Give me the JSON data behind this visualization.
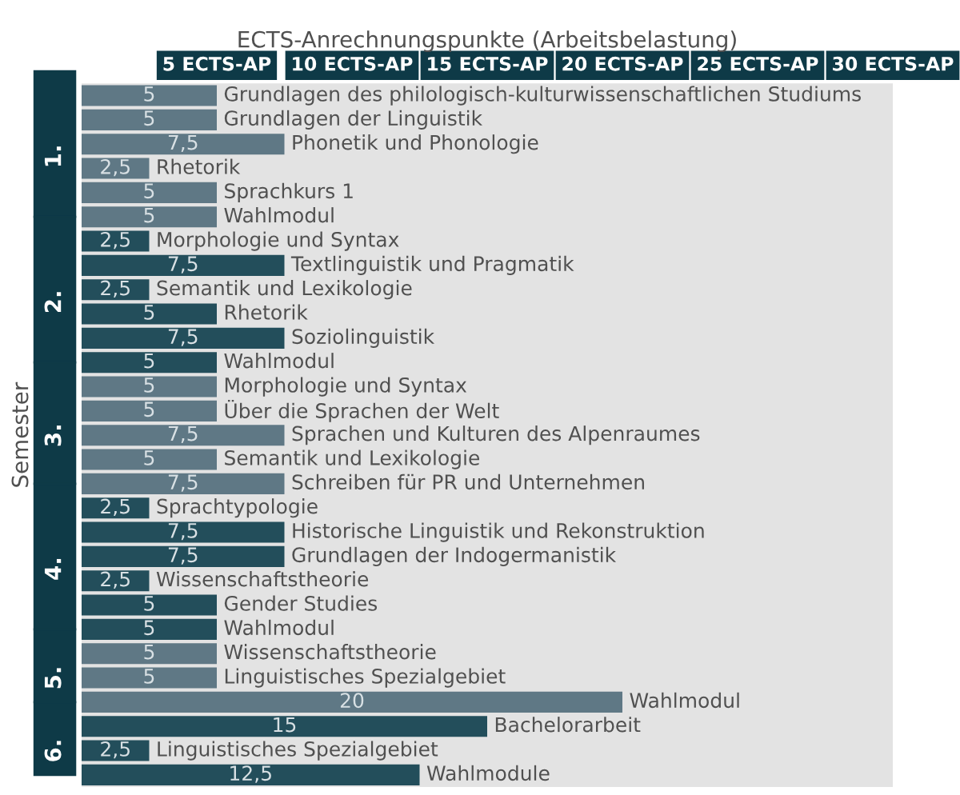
{
  "chart_data": {
    "type": "bar",
    "orientation": "horizontal",
    "xlabel": "ECTS-Anrechnungspunkte (Arbeitsbelastung)",
    "ylabel": "Semester",
    "categories": [
      "Grundlagen des philologisch-kulturwissenschaftlichen Studiums",
      "Grundlagen der Linguistik",
      "Phonetik und Phonologie",
      "Rhetorik",
      "Sprachkurs 1",
      "Wahlmodul",
      "Morphologie und Syntax",
      "Textlinguistik und Pragmatik",
      "Semantik und Lexikologie",
      "Rhetorik",
      "Soziolinguistik",
      "Wahlmodul",
      "Morphologie und Syntax",
      "Über die Sprachen der Welt",
      "Sprachen und Kulturen des Alpenraumes",
      "Semantik und Lexikologie",
      "Schreiben für PR und Unternehmen",
      "Sprachtypologie",
      "Historische Linguistik und Rekonstruktion",
      "Grundlagen der Indogermanistik",
      "Wissenschaftstheorie",
      "Gender Studies",
      "Wahlmodul",
      "Wissenschaftstheorie",
      "Linguistisches Spezialgebiet",
      "Wahlmodul",
      "Bachelorarbeit",
      "Linguistisches Spezialgebiet",
      "Wahlmodule"
    ],
    "series": [
      {
        "name": "1.",
        "color": "#5f7885",
        "values": [
          5,
          5,
          7.5,
          2.5,
          5,
          5,
          null,
          null,
          null,
          null,
          null,
          null,
          null,
          null,
          null,
          null,
          null,
          null,
          null,
          null,
          null,
          null,
          null,
          null,
          null,
          null,
          null,
          null,
          null
        ],
        "value_labels": [
          "5",
          "5",
          "7,5",
          "2,5",
          "5",
          "5",
          null,
          null,
          null,
          null,
          null,
          null,
          null,
          null,
          null,
          null,
          null,
          null,
          null,
          null,
          null,
          null,
          null,
          null,
          null,
          null,
          null,
          null,
          null
        ]
      },
      {
        "name": "2.",
        "color": "#234e5b",
        "values": [
          null,
          null,
          null,
          null,
          null,
          null,
          2.5,
          7.5,
          2.5,
          5,
          7.5,
          5,
          null,
          null,
          null,
          null,
          null,
          null,
          null,
          null,
          null,
          null,
          null,
          null,
          null,
          null,
          null,
          null,
          null
        ],
        "value_labels": [
          null,
          null,
          null,
          null,
          null,
          null,
          "2,5",
          "7,5",
          "2,5",
          "5",
          "7,5",
          "5",
          null,
          null,
          null,
          null,
          null,
          null,
          null,
          null,
          null,
          null,
          null,
          null,
          null,
          null,
          null,
          null,
          null
        ]
      },
      {
        "name": "3.",
        "color": "#5f7885",
        "values": [
          null,
          null,
          null,
          null,
          null,
          null,
          null,
          null,
          null,
          null,
          null,
          null,
          5,
          5,
          7.5,
          5,
          7.5,
          null,
          null,
          null,
          null,
          null,
          null,
          null,
          null,
          null,
          null,
          null,
          null
        ],
        "value_labels": [
          null,
          null,
          null,
          null,
          null,
          null,
          null,
          null,
          null,
          null,
          null,
          null,
          "5",
          "5",
          "7,5",
          "5",
          "7,5",
          null,
          null,
          null,
          null,
          null,
          null,
          null,
          null,
          null,
          null,
          null,
          null
        ]
      },
      {
        "name": "4.",
        "color": "#234e5b",
        "values": [
          null,
          null,
          null,
          null,
          null,
          null,
          null,
          null,
          null,
          null,
          null,
          null,
          null,
          null,
          null,
          null,
          null,
          2.5,
          7.5,
          7.5,
          2.5,
          5,
          5,
          null,
          null,
          null,
          null,
          null,
          null
        ],
        "value_labels": [
          null,
          null,
          null,
          null,
          null,
          null,
          null,
          null,
          null,
          null,
          null,
          null,
          null,
          null,
          null,
          null,
          null,
          "2,5",
          "7,5",
          "7,5",
          "2,5",
          "5",
          "5",
          null,
          null,
          null,
          null,
          null,
          null
        ]
      },
      {
        "name": "5.",
        "color": "#5f7885",
        "values": [
          null,
          null,
          null,
          null,
          null,
          null,
          null,
          null,
          null,
          null,
          null,
          null,
          null,
          null,
          null,
          null,
          null,
          null,
          null,
          null,
          null,
          null,
          null,
          5,
          5,
          20,
          null,
          null,
          null
        ],
        "value_labels": [
          null,
          null,
          null,
          null,
          null,
          null,
          null,
          null,
          null,
          null,
          null,
          null,
          null,
          null,
          null,
          null,
          null,
          null,
          null,
          null,
          null,
          null,
          null,
          "5",
          "5",
          "20",
          null,
          null,
          null
        ]
      },
      {
        "name": "6.",
        "color": "#234e5b",
        "values": [
          null,
          null,
          null,
          null,
          null,
          null,
          null,
          null,
          null,
          null,
          null,
          null,
          null,
          null,
          null,
          null,
          null,
          null,
          null,
          null,
          null,
          null,
          null,
          null,
          null,
          null,
          15,
          2.5,
          12.5
        ],
        "value_labels": [
          null,
          null,
          null,
          null,
          null,
          null,
          null,
          null,
          null,
          null,
          null,
          null,
          null,
          null,
          null,
          null,
          null,
          null,
          null,
          null,
          null,
          null,
          null,
          null,
          null,
          null,
          "15",
          "2,5",
          "12,5"
        ]
      }
    ],
    "xlim": [
      0,
      30
    ],
    "xticks": [
      {
        "value": 5,
        "label": "5 ECTS-AP"
      },
      {
        "value": 10,
        "label": "10 ECTS-AP"
      },
      {
        "value": 15,
        "label": "15 ECTS-AP"
      },
      {
        "value": 20,
        "label": "20 ECTS-AP"
      },
      {
        "value": 25,
        "label": "25 ECTS-AP"
      },
      {
        "value": 30,
        "label": "30 ECTS-AP"
      }
    ],
    "tick_labels": "x"
  }
}
